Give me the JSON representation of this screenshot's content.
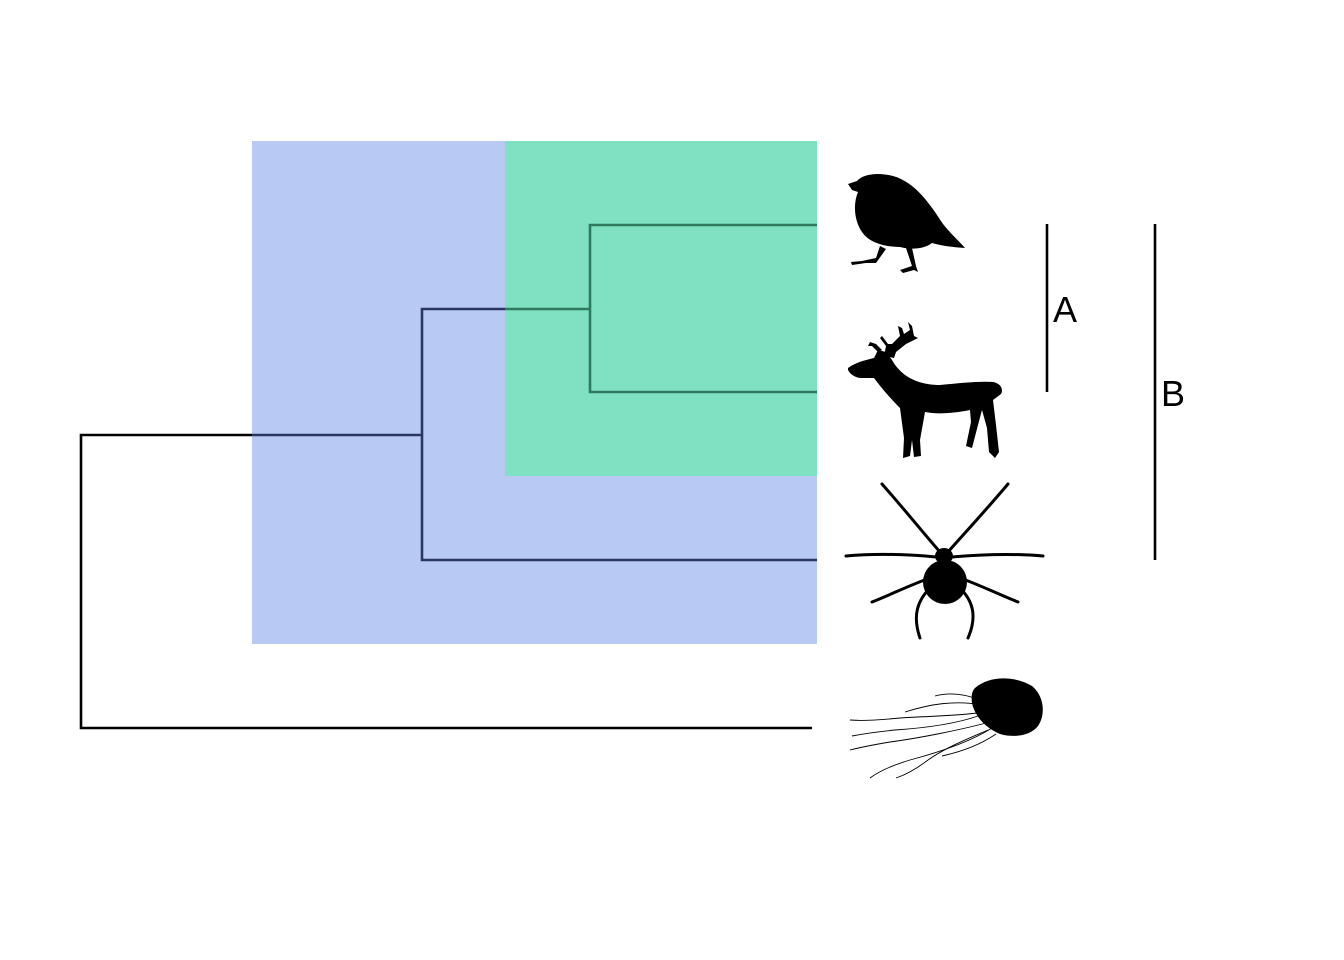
{
  "diagram": {
    "type": "phylogenetic-tree",
    "taxa": [
      {
        "name": "bird",
        "icon": "bird-silhouette-icon"
      },
      {
        "name": "deer",
        "icon": "deer-silhouette-icon"
      },
      {
        "name": "spider",
        "icon": "spider-silhouette-icon"
      },
      {
        "name": "jellyfish",
        "icon": "jellyfish-silhouette-icon"
      }
    ],
    "clades": [
      {
        "label": "A",
        "members": [
          "bird",
          "deer"
        ],
        "highlight_color": "#7fe1c1",
        "line_color": "#2f7a5e"
      },
      {
        "label": "B",
        "members": [
          "bird",
          "deer",
          "spider"
        ],
        "highlight_color": "#b8caf3",
        "line_color": "#2a3560"
      }
    ],
    "root_line_color": "#000000"
  }
}
